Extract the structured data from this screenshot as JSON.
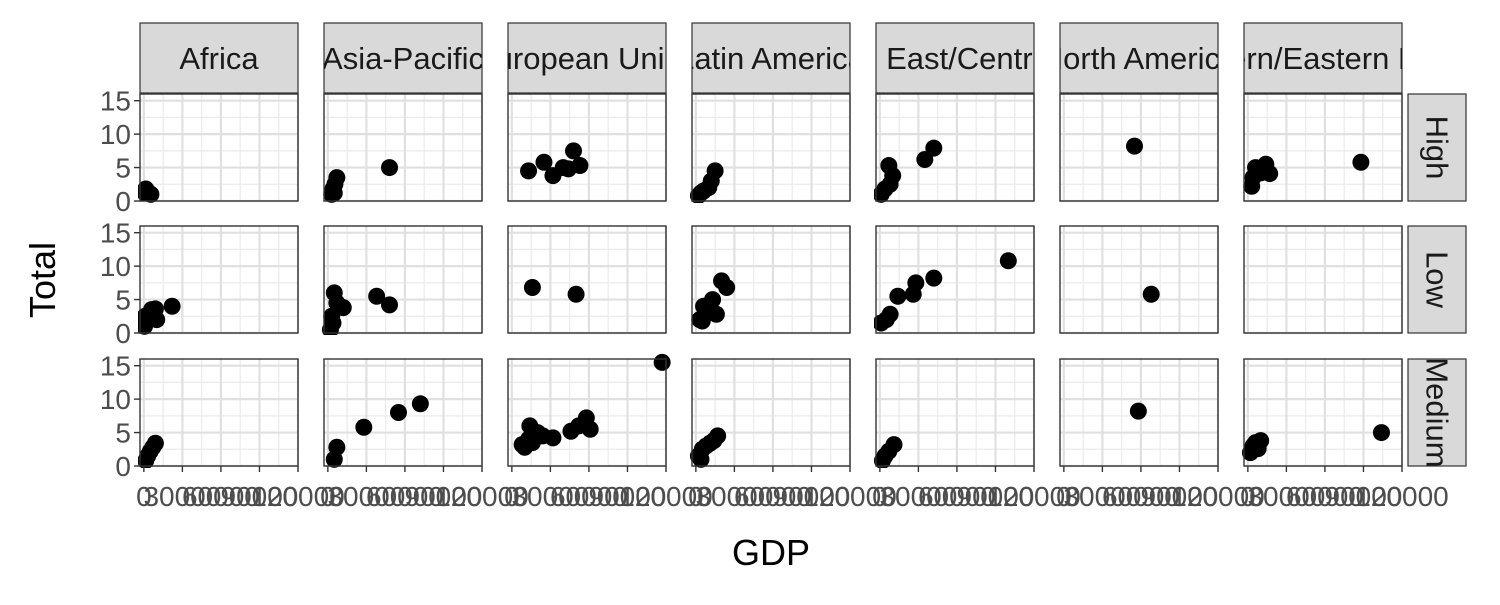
{
  "chart_data": {
    "type": "scatter",
    "xlabel": "GDP",
    "ylabel": "Total",
    "columns": [
      "Africa",
      "Asia-Pacific",
      "European Union",
      "Latin America",
      "Middle East/Central Asia",
      "North America",
      "Southern/Eastern Europe"
    ],
    "rows": [
      "High",
      "Low",
      "Medium"
    ],
    "xlim": [
      -3000,
      120000
    ],
    "ylim": [
      0,
      16
    ],
    "x_ticks": [
      0,
      30000,
      60000,
      90000,
      120000
    ],
    "x_tick_labels": [
      "0",
      "30000",
      "60000",
      "90000",
      "120000"
    ],
    "y_ticks": [
      0,
      5,
      10,
      15
    ],
    "y_tick_labels": [
      "0",
      "5",
      "10",
      "15"
    ],
    "grid": true,
    "panels": [
      {
        "column": "Africa",
        "row": "High",
        "points": [
          [
            1500,
            1.8
          ],
          [
            3000,
            1.4
          ],
          [
            5500,
            1.0
          ],
          [
            1000,
            1.2
          ]
        ]
      },
      {
        "column": "Asia-Pacific",
        "row": "High",
        "points": [
          [
            3000,
            1.0
          ],
          [
            4000,
            1.8
          ],
          [
            5500,
            2.5
          ],
          [
            7000,
            3.5
          ],
          [
            5000,
            1.2
          ],
          [
            48000,
            5.0
          ]
        ]
      },
      {
        "column": "European Union",
        "row": "High",
        "points": [
          [
            13000,
            4.5
          ],
          [
            25000,
            5.8
          ],
          [
            32000,
            3.8
          ],
          [
            40000,
            5.0
          ],
          [
            44000,
            4.8
          ],
          [
            48000,
            7.5
          ],
          [
            53000,
            5.3
          ]
        ]
      },
      {
        "column": "Latin America",
        "row": "High",
        "points": [
          [
            2000,
            0.8
          ],
          [
            6000,
            1.5
          ],
          [
            10000,
            2.0
          ],
          [
            12000,
            3.0
          ],
          [
            15000,
            4.5
          ],
          [
            4000,
            1.2
          ]
        ]
      },
      {
        "column": "Middle East/Central Asia",
        "row": "High",
        "points": [
          [
            1000,
            1.0
          ],
          [
            4000,
            1.8
          ],
          [
            7000,
            5.3
          ],
          [
            10000,
            3.8
          ],
          [
            8000,
            2.5
          ],
          [
            35000,
            6.2
          ],
          [
            42000,
            7.9
          ]
        ]
      },
      {
        "column": "North America",
        "row": "High",
        "points": [
          [
            55000,
            8.2
          ]
        ]
      },
      {
        "column": "Southern/Eastern Europe",
        "row": "High",
        "points": [
          [
            3000,
            2.2
          ],
          [
            4000,
            3.5
          ],
          [
            6000,
            5.0
          ],
          [
            10000,
            4.2
          ],
          [
            14000,
            5.5
          ],
          [
            17000,
            4.1
          ],
          [
            88000,
            5.8
          ]
        ]
      },
      {
        "column": "Africa",
        "row": "Low",
        "points": [
          [
            500,
            1.0
          ],
          [
            1500,
            1.8
          ],
          [
            3500,
            2.5
          ],
          [
            6000,
            3.5
          ],
          [
            9000,
            3.6
          ],
          [
            10000,
            2.0
          ],
          [
            22000,
            4.0
          ],
          [
            1000,
            2.5
          ]
        ]
      },
      {
        "column": "Asia-Pacific",
        "row": "Low",
        "points": [
          [
            2000,
            0.5
          ],
          [
            3000,
            2.5
          ],
          [
            5000,
            6.0
          ],
          [
            7000,
            4.5
          ],
          [
            12000,
            3.8
          ],
          [
            4000,
            1.5
          ],
          [
            38000,
            5.5
          ],
          [
            48000,
            4.2
          ]
        ]
      },
      {
        "column": "European Union",
        "row": "Low",
        "points": [
          [
            16000,
            6.8
          ],
          [
            50000,
            5.8
          ]
        ]
      },
      {
        "column": "Latin America",
        "row": "Low",
        "points": [
          [
            3000,
            2.0
          ],
          [
            6000,
            4.0
          ],
          [
            10000,
            3.0
          ],
          [
            13000,
            5.0
          ],
          [
            16000,
            2.8
          ],
          [
            20000,
            7.8
          ],
          [
            24000,
            6.8
          ],
          [
            5000,
            1.8
          ]
        ]
      },
      {
        "column": "Middle East/Central Asia",
        "row": "Low",
        "points": [
          [
            1000,
            1.5
          ],
          [
            5000,
            2.0
          ],
          [
            8000,
            2.8
          ],
          [
            14000,
            5.5
          ],
          [
            26000,
            5.8
          ],
          [
            28000,
            7.5
          ],
          [
            42000,
            8.2
          ],
          [
            100000,
            10.8
          ]
        ]
      },
      {
        "column": "North America",
        "row": "Low",
        "points": [
          [
            68000,
            5.8
          ]
        ]
      },
      {
        "column": "Southern/Eastern Europe",
        "row": "Low",
        "points": []
      },
      {
        "column": "Africa",
        "row": "Medium",
        "points": [
          [
            1500,
            0.8
          ],
          [
            3000,
            1.5
          ],
          [
            5000,
            2.2
          ],
          [
            7000,
            2.8
          ],
          [
            9000,
            3.4
          ]
        ]
      },
      {
        "column": "Asia-Pacific",
        "row": "Medium",
        "points": [
          [
            5000,
            1.0
          ],
          [
            7000,
            2.8
          ],
          [
            28000,
            5.8
          ],
          [
            55000,
            8.0
          ],
          [
            72000,
            9.3
          ]
        ]
      },
      {
        "column": "European Union",
        "row": "Medium",
        "points": [
          [
            8000,
            3.2
          ],
          [
            10000,
            2.8
          ],
          [
            13000,
            4.0
          ],
          [
            14000,
            6.0
          ],
          [
            16000,
            3.5
          ],
          [
            20000,
            5.0
          ],
          [
            24000,
            4.5
          ],
          [
            32000,
            4.2
          ],
          [
            46000,
            5.2
          ],
          [
            52000,
            6.0
          ],
          [
            58000,
            7.2
          ],
          [
            61000,
            5.5
          ],
          [
            117000,
            15.5
          ]
        ]
      },
      {
        "column": "Latin America",
        "row": "Medium",
        "points": [
          [
            2000,
            1.5
          ],
          [
            5000,
            2.5
          ],
          [
            8000,
            3.0
          ],
          [
            11000,
            3.4
          ],
          [
            14000,
            3.8
          ],
          [
            17000,
            4.5
          ],
          [
            4000,
            1.0
          ]
        ]
      },
      {
        "column": "Middle East/Central Asia",
        "row": "Medium",
        "points": [
          [
            2000,
            0.8
          ],
          [
            4000,
            1.5
          ],
          [
            7000,
            2.2
          ],
          [
            11000,
            3.2
          ]
        ]
      },
      {
        "column": "North America",
        "row": "Medium",
        "points": [
          [
            58000,
            8.2
          ]
        ]
      },
      {
        "column": "Southern/Eastern Europe",
        "row": "Medium",
        "points": [
          [
            2000,
            2.0
          ],
          [
            4000,
            3.0
          ],
          [
            6000,
            3.5
          ],
          [
            8000,
            2.6
          ],
          [
            10000,
            3.8
          ],
          [
            104000,
            5.0
          ]
        ]
      }
    ]
  }
}
